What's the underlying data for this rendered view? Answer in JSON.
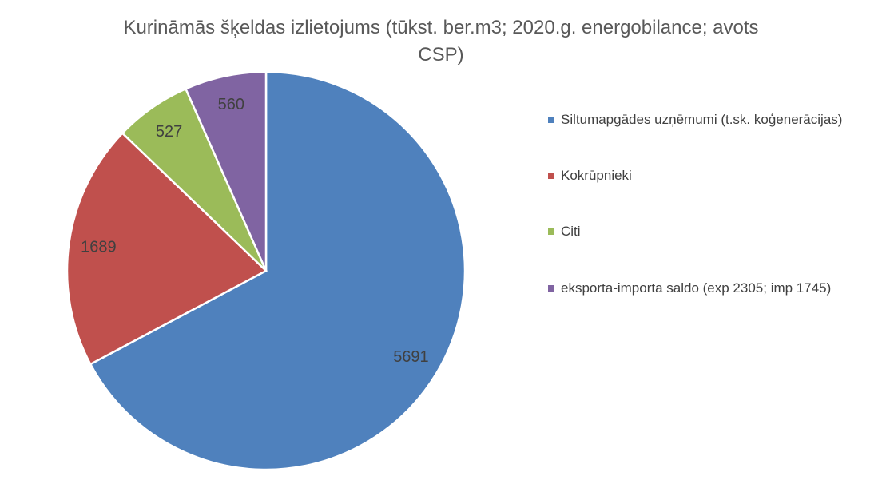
{
  "chart_data": {
    "type": "pie",
    "title": "Kurināmās šķeldas izlietojums (tūkst. ber.m3; 2020.g. energobilance; avots CSP)",
    "categories": [
      "Siltumapgādes uzņēmumi (t.sk. koģenerācijas)",
      "Kokrūpnieki",
      "Citi",
      "eksporta-importa saldo (exp 2305; imp 1745)"
    ],
    "values": [
      5691,
      1689,
      527,
      560
    ],
    "colors": [
      "#4f81bd",
      "#c0504d",
      "#9bbb59",
      "#8064a2"
    ],
    "legend": "right"
  }
}
